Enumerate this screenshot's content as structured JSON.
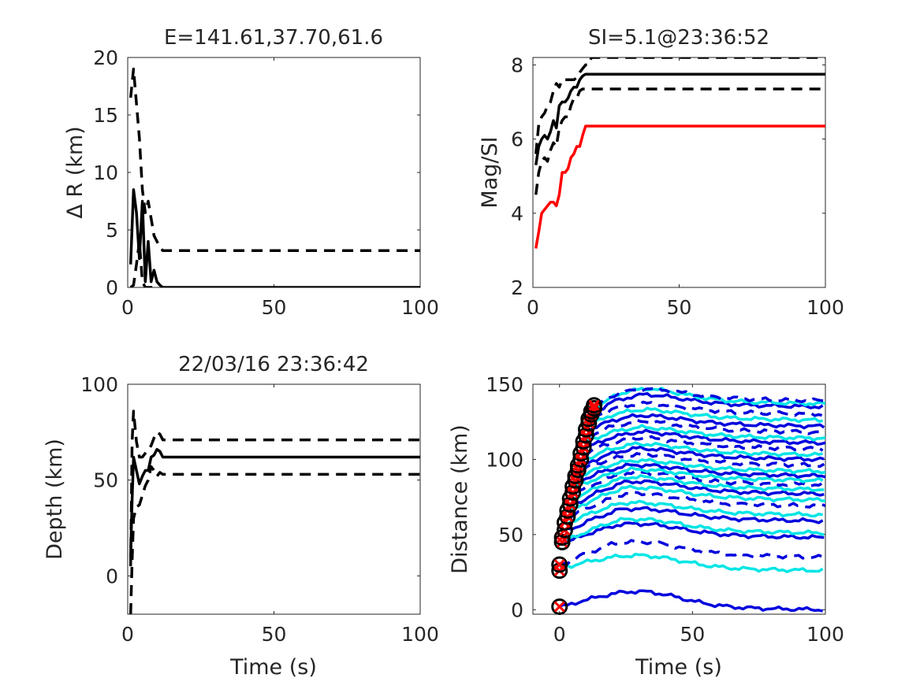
{
  "chart_data": [
    {
      "type": "line",
      "title": "E=141.61,37.70,61.6",
      "xlabel": "",
      "ylabel": "Δ R (km)",
      "xlim": [
        0,
        100
      ],
      "ylim": [
        0,
        20
      ],
      "xticks": [
        "0",
        "50",
        "100"
      ],
      "yticks": [
        "0",
        "5",
        "10",
        "15",
        "20"
      ],
      "grid": false,
      "series": [
        {
          "style": "solid",
          "color": "#000000",
          "x": [
            1,
            2,
            3,
            4,
            5,
            6,
            7,
            8,
            9,
            10,
            11,
            12,
            13,
            14,
            20,
            40,
            60,
            80,
            100
          ],
          "y": [
            2,
            8.5,
            6.5,
            2.5,
            7.5,
            0.5,
            4,
            0.5,
            1.5,
            0.5,
            0.2,
            0,
            0,
            0,
            0,
            0,
            0,
            0,
            0
          ]
        },
        {
          "style": "dashed",
          "color": "#000000",
          "x": [
            1,
            2,
            3,
            4,
            5,
            6,
            7,
            8,
            9,
            10,
            11,
            12,
            13,
            14,
            20,
            40,
            60,
            80,
            100
          ],
          "y": [
            16.5,
            19,
            16,
            13,
            8.5,
            6.5,
            7.5,
            6,
            4.5,
            4,
            3.5,
            3.2,
            3.2,
            3.2,
            3.2,
            3.2,
            3.2,
            3.2,
            3.2
          ]
        },
        {
          "style": "dashed",
          "color": "#000000",
          "x": [
            1,
            2,
            3,
            4,
            5,
            6,
            7,
            8,
            9,
            10
          ],
          "y": [
            0,
            0.2,
            2,
            4,
            0.5,
            0,
            0,
            0,
            0,
            0
          ]
        }
      ]
    },
    {
      "type": "line",
      "title": "SI=5.1@23:36:52",
      "xlabel": "",
      "ylabel": "Mag/SI",
      "xlim": [
        0,
        100
      ],
      "ylim": [
        2,
        8.2
      ],
      "xticks": [
        "0",
        "50",
        "100"
      ],
      "yticks": [
        "2",
        "4",
        "6",
        "8"
      ],
      "grid": false,
      "series": [
        {
          "style": "solid",
          "color": "#000000",
          "x": [
            1,
            2,
            3,
            4,
            5,
            6,
            7,
            8,
            9,
            10,
            11,
            12,
            13,
            14,
            15,
            16,
            17,
            18,
            20,
            30,
            100
          ],
          "y": [
            5.3,
            5.8,
            6.0,
            6.1,
            6.0,
            6.2,
            6.5,
            6.3,
            6.9,
            7.0,
            7.0,
            7.1,
            7.3,
            7.4,
            7.4,
            7.6,
            7.7,
            7.75,
            7.75,
            7.75,
            7.75
          ]
        },
        {
          "style": "dashed",
          "color": "#000000",
          "x": [
            1,
            2,
            3,
            4,
            5,
            6,
            7,
            8,
            9,
            10,
            11,
            12,
            13,
            14,
            15,
            16,
            17,
            18,
            19,
            20,
            100
          ],
          "y": [
            5.6,
            6.4,
            6.6,
            6.7,
            6.9,
            7.0,
            7.3,
            7.5,
            7.4,
            7.6,
            7.6,
            7.6,
            7.6,
            7.6,
            7.65,
            7.8,
            7.9,
            8.0,
            8.0,
            8.2,
            8.2
          ]
        },
        {
          "style": "dashed",
          "color": "#000000",
          "x": [
            1,
            2,
            3,
            4,
            5,
            6,
            7,
            8,
            9,
            10,
            11,
            12,
            13,
            14,
            15,
            16,
            17,
            18,
            20,
            100
          ],
          "y": [
            4.5,
            5.1,
            5.4,
            5.5,
            5.4,
            5.7,
            5.9,
            5.8,
            6.3,
            6.5,
            6.6,
            6.6,
            6.9,
            7.1,
            7.1,
            7.3,
            7.35,
            7.35,
            7.35,
            7.35
          ]
        },
        {
          "style": "solid",
          "color": "#ff0000",
          "x": [
            1,
            2,
            3,
            4,
            5,
            6,
            7,
            8,
            9,
            10,
            11,
            12,
            13,
            14,
            15,
            16,
            17,
            18,
            100
          ],
          "y": [
            3.05,
            3.5,
            4.0,
            4.1,
            4.2,
            4.3,
            4.3,
            4.2,
            4.5,
            5.1,
            5.1,
            5.2,
            5.5,
            5.6,
            5.8,
            5.8,
            6.1,
            6.35,
            6.35
          ]
        }
      ]
    },
    {
      "type": "line",
      "title": "22/03/16 23:36:42",
      "xlabel": "Time (s)",
      "ylabel": "Depth (km)",
      "xlim": [
        0,
        100
      ],
      "ylim": [
        -20,
        100
      ],
      "xticks": [
        "0",
        "50",
        "100"
      ],
      "yticks": [
        "0",
        "50",
        "100"
      ],
      "grid": false,
      "series": [
        {
          "style": "solid",
          "color": "#000000",
          "x": [
            1,
            1.5,
            2,
            3,
            4,
            5,
            6,
            7,
            8,
            9,
            10,
            11,
            12,
            14,
            20,
            50,
            100
          ],
          "y": [
            10,
            40,
            62,
            55,
            48,
            52,
            55,
            55,
            62,
            63,
            66,
            65,
            62,
            62,
            62,
            62,
            62
          ]
        },
        {
          "style": "dashed",
          "color": "#000000",
          "x": [
            1,
            1.5,
            2,
            3,
            4,
            5,
            6,
            7,
            8,
            9,
            10,
            11,
            12,
            14,
            20,
            50,
            100
          ],
          "y": [
            5,
            70,
            86,
            70,
            62,
            62,
            64,
            66,
            68,
            72,
            75,
            74,
            71,
            71,
            71,
            71,
            71
          ]
        },
        {
          "style": "dashed",
          "color": "#000000",
          "x": [
            1,
            1.5,
            2,
            3,
            4,
            5,
            6,
            7,
            8,
            9,
            10,
            11,
            12,
            14,
            20,
            50,
            100
          ],
          "y": [
            -20,
            8,
            30,
            36,
            37,
            42,
            47,
            50,
            57,
            55,
            52,
            54,
            53,
            53,
            53,
            53,
            53
          ]
        }
      ]
    },
    {
      "type": "line",
      "title": "",
      "xlabel": "Time (s)",
      "ylabel": "Distance (km)",
      "xlim": [
        -10,
        100
      ],
      "ylim": [
        -3,
        150
      ],
      "xticks": [
        "0",
        "50",
        "100"
      ],
      "yticks": [
        "0",
        "50",
        "100",
        "150"
      ],
      "grid": false,
      "traces": [
        {
          "color": "#0000dd",
          "style": "solid",
          "t0": 0,
          "d0": 2,
          "d1": 3,
          "peak": 10
        },
        {
          "color": "#00e5e5",
          "style": "solid",
          "t0": 0,
          "d0": 28,
          "d1": 29,
          "peak": 8
        },
        {
          "color": "#0000dd",
          "style": "dashed",
          "t0": 0,
          "d0": 30,
          "d1": 38,
          "peak": 8
        },
        {
          "color": "#0000dd",
          "style": "solid",
          "t0": 2,
          "d0": 45,
          "d1": 51,
          "peak": 7
        },
        {
          "color": "#00e5e5",
          "style": "solid",
          "t0": 2,
          "d0": 46,
          "d1": 54,
          "peak": 7
        },
        {
          "color": "#0000dd",
          "style": "solid",
          "t0": 3,
          "d0": 53,
          "d1": 62,
          "peak": 6
        },
        {
          "color": "#00e5e5",
          "style": "solid",
          "t0": 3,
          "d0": 58,
          "d1": 66,
          "peak": 6
        },
        {
          "color": "#0000dd",
          "style": "dashed",
          "t0": 4,
          "d0": 62,
          "d1": 72,
          "peak": 6
        },
        {
          "color": "#00e5e5",
          "style": "solid",
          "t0": 4,
          "d0": 66,
          "d1": 76,
          "peak": 6
        },
        {
          "color": "#0000dd",
          "style": "solid",
          "t0": 5,
          "d0": 70,
          "d1": 80,
          "peak": 6
        },
        {
          "color": "#00e5e5",
          "style": "solid",
          "t0": 5,
          "d0": 74,
          "d1": 83,
          "peak": 6
        },
        {
          "color": "#0000dd",
          "style": "dashed",
          "t0": 6,
          "d0": 78,
          "d1": 86,
          "peak": 6
        },
        {
          "color": "#00e5e5",
          "style": "solid",
          "t0": 6,
          "d0": 82,
          "d1": 89,
          "peak": 5
        },
        {
          "color": "#0000dd",
          "style": "solid",
          "t0": 7,
          "d0": 86,
          "d1": 92,
          "peak": 5
        },
        {
          "color": "#00e5e5",
          "style": "solid",
          "t0": 7,
          "d0": 89,
          "d1": 95,
          "peak": 5
        },
        {
          "color": "#0000dd",
          "style": "dashed",
          "t0": 8,
          "d0": 93,
          "d1": 99,
          "peak": 5
        },
        {
          "color": "#0000dd",
          "style": "solid",
          "t0": 8,
          "d0": 96,
          "d1": 103,
          "peak": 5
        },
        {
          "color": "#00e5e5",
          "style": "solid",
          "t0": 9,
          "d0": 100,
          "d1": 106,
          "peak": 5
        },
        {
          "color": "#0000dd",
          "style": "dashed",
          "t0": 9,
          "d0": 104,
          "d1": 110,
          "peak": 5
        },
        {
          "color": "#0000dd",
          "style": "solid",
          "t0": 10,
          "d0": 108,
          "d1": 114,
          "peak": 5
        },
        {
          "color": "#00e5e5",
          "style": "solid",
          "t0": 10,
          "d0": 112,
          "d1": 117,
          "peak": 5
        },
        {
          "color": "#0000dd",
          "style": "dashed",
          "t0": 11,
          "d0": 116,
          "d1": 121,
          "peak": 5
        },
        {
          "color": "#0000dd",
          "style": "solid",
          "t0": 11,
          "d0": 120,
          "d1": 125,
          "peak": 5
        },
        {
          "color": "#00e5e5",
          "style": "solid",
          "t0": 12,
          "d0": 124,
          "d1": 129,
          "peak": 5
        },
        {
          "color": "#0000dd",
          "style": "dashed",
          "t0": 12,
          "d0": 128,
          "d1": 133,
          "peak": 5
        },
        {
          "color": "#0000dd",
          "style": "solid",
          "t0": 12,
          "d0": 131,
          "d1": 138,
          "peak": 6
        },
        {
          "color": "#00e5e5",
          "style": "solid",
          "t0": 13,
          "d0": 134,
          "d1": 140,
          "peak": 8
        },
        {
          "color": "#0000dd",
          "style": "dashed",
          "t0": 13,
          "d0": 136,
          "d1": 142,
          "peak": 6
        }
      ],
      "picks": {
        "marker": "circle-with-red-x",
        "x": [
          0,
          0,
          0,
          1,
          1,
          2,
          2,
          3,
          3,
          4,
          4,
          5,
          5,
          6,
          6,
          7,
          7,
          8,
          8,
          9,
          9,
          10,
          10,
          11,
          11,
          12,
          12,
          13,
          13
        ],
        "y": [
          2,
          26,
          30,
          45,
          48,
          53,
          58,
          62,
          66,
          70,
          74,
          78,
          82,
          86,
          89,
          93,
          96,
          100,
          104,
          108,
          112,
          116,
          120,
          124,
          127,
          130,
          132,
          134,
          136
        ]
      }
    }
  ]
}
